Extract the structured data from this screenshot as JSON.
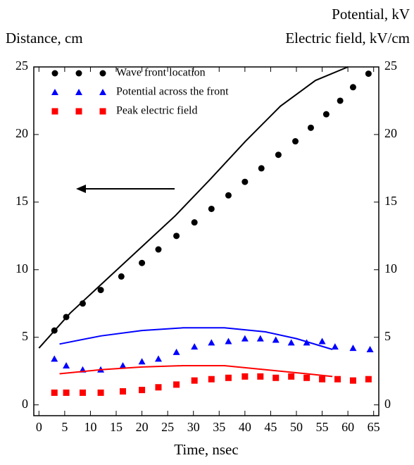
{
  "chart_data": {
    "type": "scatter",
    "y_label": "Distance, cm",
    "y2_label_1": "Potential, kV",
    "y2_label_2": "Electric field, kV/cm",
    "x_label": "Time, nsec",
    "xlim": [
      -1,
      66
    ],
    "xticks": [
      0,
      5,
      10,
      15,
      20,
      25,
      30,
      35,
      40,
      45,
      50,
      55,
      60,
      65
    ],
    "ylim": [
      -0.8,
      25
    ],
    "yticks": [
      0,
      5,
      10,
      15,
      20,
      25
    ],
    "y2lim": [
      -0.8,
      25
    ],
    "y2ticks": [
      0,
      5,
      10,
      15,
      20,
      25
    ],
    "legend": "upper left",
    "series": [
      {
        "name": "Wave front location",
        "color": "#000000",
        "marker": "circle",
        "x": [
          3,
          5.3,
          8.5,
          12,
          16,
          20,
          23.2,
          26.7,
          30.2,
          33.5,
          36.8,
          40,
          43.2,
          46.5,
          49.8,
          52.8,
          55.8,
          58.5,
          61,
          64
        ],
        "values": [
          5.5,
          6.5,
          7.5,
          8.5,
          9.5,
          10.5,
          11.5,
          12.5,
          13.5,
          14.5,
          15.5,
          16.5,
          17.5,
          18.5,
          19.5,
          20.5,
          21.5,
          22.5,
          23.5,
          24.5
        ]
      },
      {
        "name": "Potential across the front",
        "color": "#0000ff",
        "marker": "triangle",
        "axis": "y2",
        "x": [
          3,
          5.3,
          8.5,
          12,
          16.3,
          20,
          23.2,
          26.7,
          30.2,
          33.5,
          36.8,
          40,
          43,
          46,
          49,
          52,
          55,
          57.5,
          61,
          64.3
        ],
        "values": [
          3.4,
          2.9,
          2.6,
          2.6,
          2.9,
          3.2,
          3.4,
          3.9,
          4.3,
          4.6,
          4.7,
          4.9,
          4.9,
          4.8,
          4.6,
          4.6,
          4.7,
          4.3,
          4.2,
          4.1
        ]
      },
      {
        "name": "Peak electric field",
        "color": "#ff0000",
        "marker": "square",
        "axis": "y2",
        "x": [
          3,
          5.3,
          8.5,
          12,
          16.3,
          20,
          23.2,
          26.7,
          30.2,
          33.5,
          36.8,
          40,
          43,
          46,
          49,
          52,
          55,
          58,
          61,
          64
        ],
        "values": [
          0.9,
          0.9,
          0.9,
          0.9,
          1.0,
          1.1,
          1.3,
          1.5,
          1.8,
          1.9,
          2.0,
          2.1,
          2.1,
          2.0,
          2.1,
          2.0,
          1.9,
          1.9,
          1.8,
          1.9
        ]
      },
      {
        "color": "#000000",
        "marker": "line",
        "x": [
          0,
          6.1,
          12.9,
          19.7,
          26.5,
          33.3,
          40.1,
          46.9,
          53.7,
          60
        ],
        "values": [
          4.2,
          6.8,
          9.2,
          11.6,
          14.0,
          16.7,
          19.5,
          22.1,
          24.0,
          25.0
        ]
      },
      {
        "color": "#0000ff",
        "marker": "line",
        "axis": "y2",
        "x": [
          4,
          12,
          20,
          28,
          36,
          44,
          50,
          57
        ],
        "values": [
          4.5,
          5.1,
          5.5,
          5.7,
          5.7,
          5.4,
          4.9,
          4.1
        ]
      },
      {
        "color": "#ff0000",
        "marker": "line",
        "axis": "y2",
        "x": [
          4,
          12,
          20,
          28,
          36,
          44,
          52,
          57
        ],
        "values": [
          2.3,
          2.6,
          2.8,
          2.9,
          2.9,
          2.6,
          2.3,
          2.1
        ]
      }
    ]
  }
}
